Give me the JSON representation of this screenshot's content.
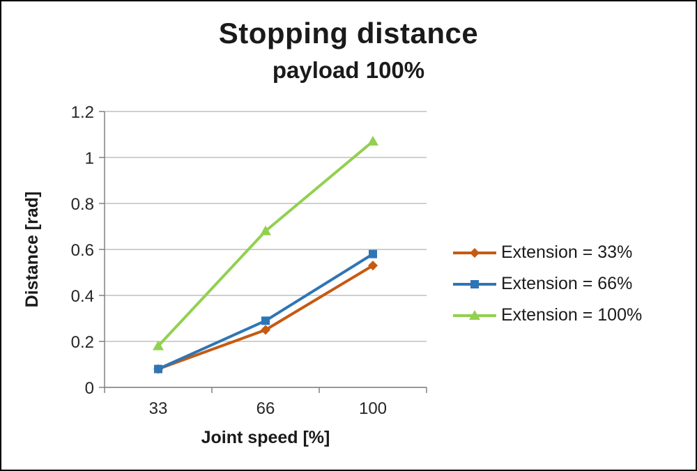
{
  "chart_data": {
    "type": "line",
    "title": "Stopping distance",
    "subtitle": "payload 100%",
    "xlabel": "Joint speed [%]",
    "ylabel": "Distance [rad]",
    "categories": [
      "33",
      "66",
      "100"
    ],
    "yticks": [
      0,
      0.2,
      0.4,
      0.6,
      0.8,
      1,
      1.2
    ],
    "ylim": [
      0,
      1.2
    ],
    "grid": true,
    "legend_position": "right",
    "colors": {
      "gridline": "#BFBFBF",
      "axis": "#808080",
      "text": "#262626"
    },
    "series": [
      {
        "name": "Extension = 33%",
        "marker": "diamond",
        "color": "#C55A11",
        "values": [
          0.08,
          0.25,
          0.53
        ]
      },
      {
        "name": "Extension = 66%",
        "marker": "square",
        "color": "#2E75B6",
        "values": [
          0.08,
          0.29,
          0.58
        ]
      },
      {
        "name": "Extension = 100%",
        "marker": "triangle",
        "color": "#92D050",
        "values": [
          0.18,
          0.68,
          1.07
        ]
      }
    ]
  }
}
